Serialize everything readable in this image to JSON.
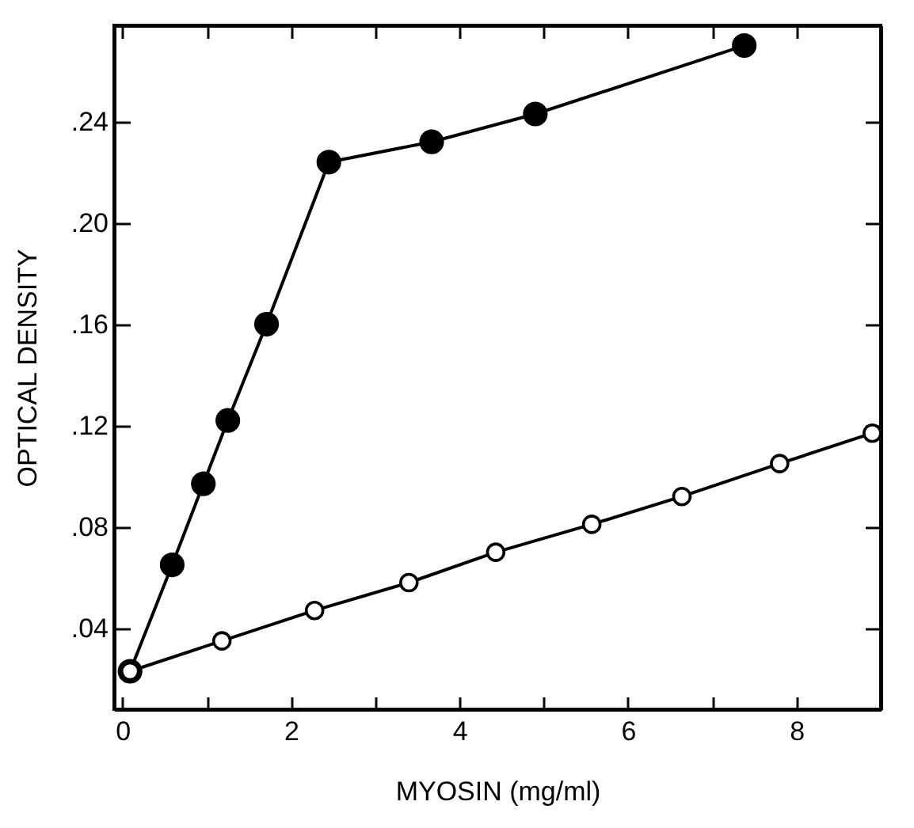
{
  "chart_data": {
    "type": "line",
    "xlabel": "MYOSIN (mg/ml)",
    "ylabel": "OPTICAL DENSITY",
    "series": [
      {
        "color": "#000000",
        "x": [
          0.09,
          0.59,
          0.96,
          1.25,
          1.71,
          2.45,
          3.67,
          4.9,
          7.38
        ],
        "values": [
          0.023,
          0.065,
          0.097,
          0.122,
          0.16,
          0.224,
          0.232,
          0.243,
          0.27
        ]
      },
      {
        "color": "#000000",
        "x": [
          0.09,
          1.18,
          2.28,
          3.4,
          4.43,
          5.57,
          6.64,
          7.8,
          8.9
        ],
        "values": [
          0.023,
          0.035,
          0.047,
          0.058,
          0.07,
          0.081,
          0.092,
          0.105,
          0.117
        ]
      }
    ],
    "xlim": [
      -0.1,
      9.0
    ],
    "ylim": [
      0.008,
      0.278
    ],
    "xticks": [
      0,
      {
        "value": 1,
        "label": null
      },
      2,
      {
        "value": 3,
        "label": null
      },
      4,
      {
        "value": 5,
        "label": null
      },
      6,
      {
        "value": 7,
        "label": null
      },
      8
    ],
    "yticks": [
      {
        "value": 0.04,
        "label": ".04"
      },
      {
        "value": 0.08,
        "label": ".08"
      },
      {
        "value": 0.12,
        "label": ".12"
      },
      {
        "value": 0.16,
        "label": ".16"
      },
      {
        "value": 0.2,
        "label": ".20"
      },
      {
        "value": 0.24,
        "label": ".24"
      }
    ],
    "marker": "circle",
    "line_style": "solid"
  }
}
